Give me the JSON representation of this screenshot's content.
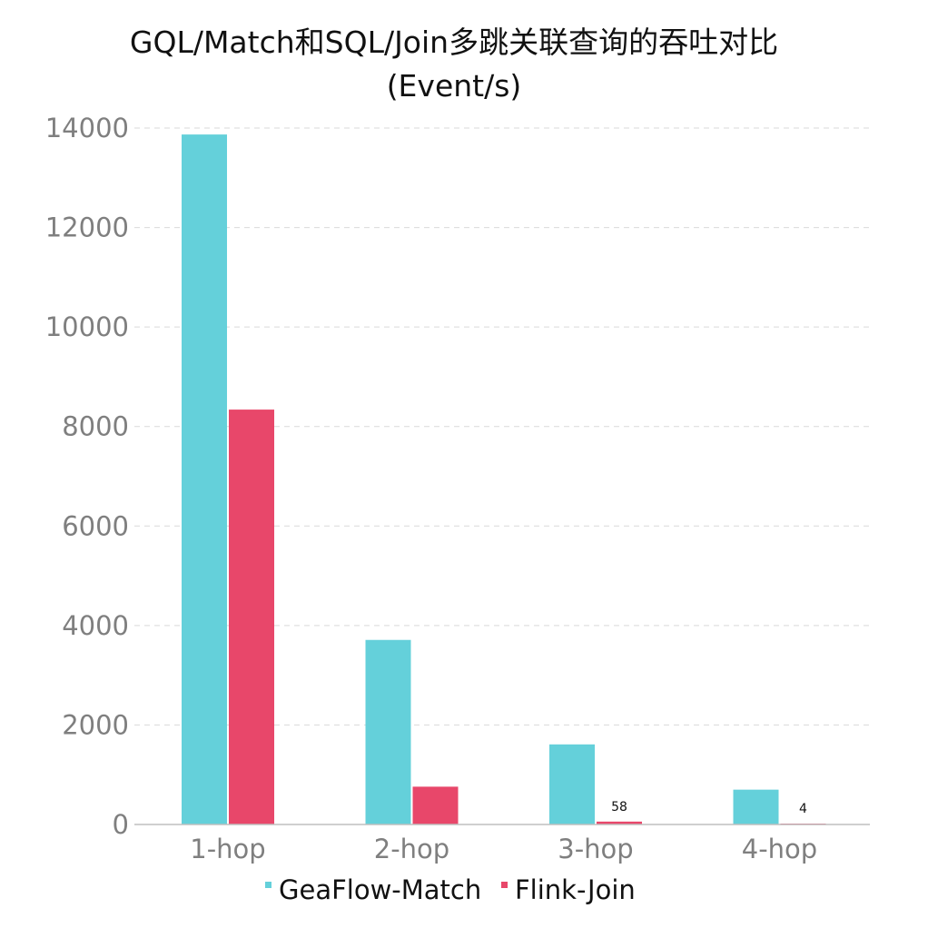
{
  "chart_data": {
    "type": "bar",
    "title": "GQL/Match和SQL/Join多跳关联查询的吞吐对比",
    "subtitle": "(Event/s)",
    "categories": [
      "1-hop",
      "2-hop",
      "3-hop",
      "4-hop"
    ],
    "series": [
      {
        "name": "GeaFlow-Match",
        "color": "#64d0da",
        "values": [
          13870,
          3710,
          1610,
          700
        ]
      },
      {
        "name": "Flink-Join",
        "color": "#e8476a",
        "values": [
          8340,
          760,
          58,
          4
        ]
      }
    ],
    "data_labels": [
      {
        "series": 1,
        "category": 2,
        "text": "58"
      },
      {
        "series": 1,
        "category": 3,
        "text": "4"
      }
    ],
    "ylim": [
      0,
      14000
    ],
    "yticks": [
      0,
      2000,
      4000,
      6000,
      8000,
      10000,
      12000,
      14000
    ],
    "grid": true,
    "legend_position": "bottom"
  }
}
